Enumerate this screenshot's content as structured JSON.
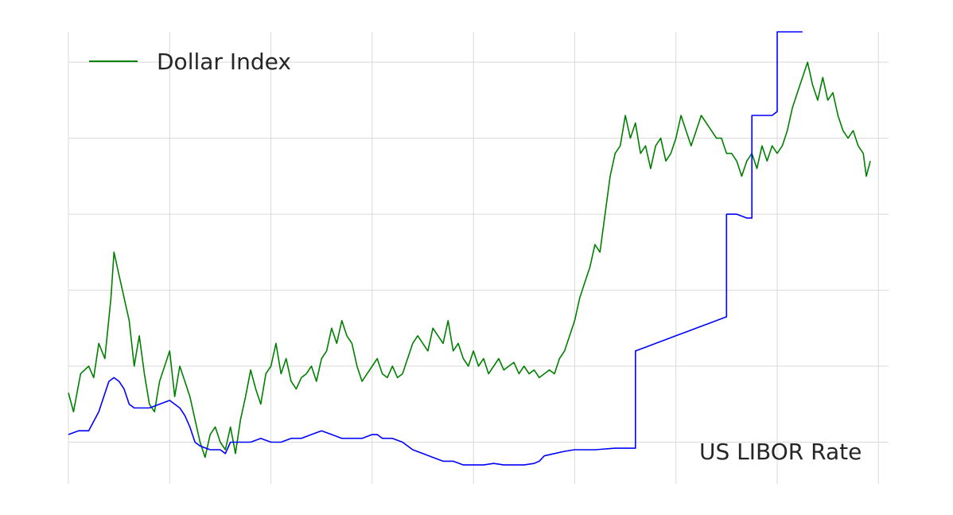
{
  "chart_data": {
    "type": "line",
    "title": "",
    "xlabel": "",
    "ylabel": "",
    "grid": true,
    "legend": {
      "placement": "top-left",
      "entries": [
        "Dollar Index"
      ]
    },
    "annotations": [
      "US LIBOR Rate"
    ],
    "x_range": [
      0,
      8.1
    ],
    "y_range": [
      -0.55,
      5.4
    ],
    "series": [
      {
        "name": "Dollar Index",
        "color": "#008000",
        "points": [
          [
            0,
            0.65
          ],
          [
            0.05,
            0.4
          ],
          [
            0.12,
            0.9
          ],
          [
            0.2,
            1.0
          ],
          [
            0.25,
            0.85
          ],
          [
            0.3,
            1.3
          ],
          [
            0.36,
            1.1
          ],
          [
            0.42,
            1.9
          ],
          [
            0.45,
            2.5
          ],
          [
            0.5,
            2.2
          ],
          [
            0.55,
            1.9
          ],
          [
            0.6,
            1.6
          ],
          [
            0.65,
            1.0
          ],
          [
            0.7,
            1.4
          ],
          [
            0.75,
            0.9
          ],
          [
            0.8,
            0.5
          ],
          [
            0.85,
            0.4
          ],
          [
            0.9,
            0.8
          ],
          [
            1.0,
            1.2
          ],
          [
            1.05,
            0.6
          ],
          [
            1.1,
            1.0
          ],
          [
            1.15,
            0.8
          ],
          [
            1.2,
            0.6
          ],
          [
            1.25,
            0.3
          ],
          [
            1.3,
            0.0
          ],
          [
            1.35,
            -0.2
          ],
          [
            1.4,
            0.1
          ],
          [
            1.45,
            0.2
          ],
          [
            1.5,
            0.0
          ],
          [
            1.55,
            -0.1
          ],
          [
            1.6,
            0.2
          ],
          [
            1.65,
            -0.15
          ],
          [
            1.7,
            0.3
          ],
          [
            1.75,
            0.6
          ],
          [
            1.8,
            0.95
          ],
          [
            1.85,
            0.7
          ],
          [
            1.9,
            0.5
          ],
          [
            1.95,
            0.9
          ],
          [
            2.0,
            1.0
          ],
          [
            2.05,
            1.3
          ],
          [
            2.1,
            0.9
          ],
          [
            2.15,
            1.1
          ],
          [
            2.2,
            0.8
          ],
          [
            2.25,
            0.7
          ],
          [
            2.3,
            0.85
          ],
          [
            2.35,
            0.9
          ],
          [
            2.4,
            1.0
          ],
          [
            2.45,
            0.8
          ],
          [
            2.5,
            1.1
          ],
          [
            2.55,
            1.2
          ],
          [
            2.6,
            1.5
          ],
          [
            2.65,
            1.3
          ],
          [
            2.7,
            1.6
          ],
          [
            2.75,
            1.4
          ],
          [
            2.8,
            1.3
          ],
          [
            2.85,
            1.0
          ],
          [
            2.9,
            0.8
          ],
          [
            2.95,
            0.9
          ],
          [
            3.0,
            1.0
          ],
          [
            3.05,
            1.1
          ],
          [
            3.1,
            0.9
          ],
          [
            3.15,
            0.85
          ],
          [
            3.2,
            1.0
          ],
          [
            3.25,
            0.85
          ],
          [
            3.3,
            0.9
          ],
          [
            3.35,
            1.1
          ],
          [
            3.4,
            1.3
          ],
          [
            3.45,
            1.4
          ],
          [
            3.5,
            1.3
          ],
          [
            3.55,
            1.2
          ],
          [
            3.6,
            1.5
          ],
          [
            3.65,
            1.4
          ],
          [
            3.7,
            1.3
          ],
          [
            3.75,
            1.6
          ],
          [
            3.8,
            1.2
          ],
          [
            3.85,
            1.3
          ],
          [
            3.9,
            1.1
          ],
          [
            3.95,
            1.0
          ],
          [
            4.0,
            1.2
          ],
          [
            4.05,
            1.0
          ],
          [
            4.1,
            1.1
          ],
          [
            4.15,
            0.9
          ],
          [
            4.2,
            1.0
          ],
          [
            4.25,
            1.1
          ],
          [
            4.3,
            0.95
          ],
          [
            4.35,
            1.0
          ],
          [
            4.4,
            1.05
          ],
          [
            4.45,
            0.9
          ],
          [
            4.5,
            1.0
          ],
          [
            4.55,
            0.9
          ],
          [
            4.6,
            0.95
          ],
          [
            4.65,
            0.85
          ],
          [
            4.7,
            0.9
          ],
          [
            4.75,
            0.95
          ],
          [
            4.8,
            0.9
          ],
          [
            4.85,
            1.1
          ],
          [
            4.9,
            1.2
          ],
          [
            4.95,
            1.4
          ],
          [
            5.0,
            1.6
          ],
          [
            5.05,
            1.9
          ],
          [
            5.1,
            2.1
          ],
          [
            5.15,
            2.3
          ],
          [
            5.2,
            2.6
          ],
          [
            5.25,
            2.5
          ],
          [
            5.3,
            3.0
          ],
          [
            5.35,
            3.5
          ],
          [
            5.4,
            3.8
          ],
          [
            5.45,
            3.9
          ],
          [
            5.5,
            4.3
          ],
          [
            5.55,
            4.0
          ],
          [
            5.6,
            4.2
          ],
          [
            5.65,
            3.8
          ],
          [
            5.7,
            3.9
          ],
          [
            5.75,
            3.6
          ],
          [
            5.8,
            3.9
          ],
          [
            5.85,
            4.0
          ],
          [
            5.9,
            3.7
          ],
          [
            5.95,
            3.8
          ],
          [
            6.0,
            4.0
          ],
          [
            6.05,
            4.3
          ],
          [
            6.1,
            4.1
          ],
          [
            6.15,
            3.9
          ],
          [
            6.2,
            4.1
          ],
          [
            6.25,
            4.3
          ],
          [
            6.3,
            4.2
          ],
          [
            6.35,
            4.1
          ],
          [
            6.4,
            4.0
          ],
          [
            6.45,
            4.0
          ],
          [
            6.5,
            3.8
          ],
          [
            6.55,
            3.8
          ],
          [
            6.6,
            3.7
          ],
          [
            6.65,
            3.5
          ],
          [
            6.7,
            3.7
          ],
          [
            6.75,
            3.8
          ],
          [
            6.8,
            3.6
          ],
          [
            6.85,
            3.9
          ],
          [
            6.9,
            3.7
          ],
          [
            6.95,
            3.9
          ],
          [
            7.0,
            3.8
          ],
          [
            7.05,
            3.9
          ],
          [
            7.1,
            4.1
          ],
          [
            7.15,
            4.4
          ],
          [
            7.2,
            4.6
          ],
          [
            7.25,
            4.8
          ],
          [
            7.3,
            5.0
          ],
          [
            7.35,
            4.7
          ],
          [
            7.4,
            4.5
          ],
          [
            7.45,
            4.8
          ],
          [
            7.5,
            4.5
          ],
          [
            7.55,
            4.6
          ],
          [
            7.6,
            4.3
          ],
          [
            7.65,
            4.1
          ],
          [
            7.7,
            4.0
          ],
          [
            7.75,
            4.1
          ],
          [
            7.8,
            3.9
          ],
          [
            7.85,
            3.8
          ],
          [
            7.88,
            3.5
          ],
          [
            7.92,
            3.7
          ]
        ]
      },
      {
        "name": "US LIBOR Rate",
        "color": "#0000ff",
        "points": [
          [
            0,
            0.1
          ],
          [
            0.1,
            0.15
          ],
          [
            0.2,
            0.15
          ],
          [
            0.3,
            0.4
          ],
          [
            0.35,
            0.6
          ],
          [
            0.4,
            0.8
          ],
          [
            0.45,
            0.85
          ],
          [
            0.5,
            0.8
          ],
          [
            0.55,
            0.7
          ],
          [
            0.6,
            0.5
          ],
          [
            0.65,
            0.45
          ],
          [
            0.7,
            0.45
          ],
          [
            0.8,
            0.45
          ],
          [
            0.9,
            0.5
          ],
          [
            1.0,
            0.55
          ],
          [
            1.05,
            0.5
          ],
          [
            1.1,
            0.45
          ],
          [
            1.15,
            0.35
          ],
          [
            1.2,
            0.2
          ],
          [
            1.25,
            0.0
          ],
          [
            1.3,
            -0.05
          ],
          [
            1.4,
            -0.1
          ],
          [
            1.5,
            -0.1
          ],
          [
            1.55,
            -0.15
          ],
          [
            1.6,
            0.0
          ],
          [
            1.7,
            0.0
          ],
          [
            1.8,
            0.0
          ],
          [
            1.9,
            0.05
          ],
          [
            2.0,
            0.0
          ],
          [
            2.1,
            0.0
          ],
          [
            2.2,
            0.05
          ],
          [
            2.3,
            0.05
          ],
          [
            2.4,
            0.1
          ],
          [
            2.5,
            0.15
          ],
          [
            2.6,
            0.1
          ],
          [
            2.7,
            0.05
          ],
          [
            2.8,
            0.05
          ],
          [
            2.9,
            0.05
          ],
          [
            3.0,
            0.1
          ],
          [
            3.05,
            0.1
          ],
          [
            3.1,
            0.05
          ],
          [
            3.2,
            0.05
          ],
          [
            3.3,
            0.0
          ],
          [
            3.4,
            -0.1
          ],
          [
            3.5,
            -0.15
          ],
          [
            3.6,
            -0.2
          ],
          [
            3.7,
            -0.25
          ],
          [
            3.8,
            -0.25
          ],
          [
            3.9,
            -0.3
          ],
          [
            4.0,
            -0.3
          ],
          [
            4.1,
            -0.3
          ],
          [
            4.2,
            -0.28
          ],
          [
            4.3,
            -0.3
          ],
          [
            4.4,
            -0.3
          ],
          [
            4.5,
            -0.3
          ],
          [
            4.6,
            -0.28
          ],
          [
            4.65,
            -0.25
          ],
          [
            4.7,
            -0.18
          ],
          [
            4.8,
            -0.15
          ],
          [
            4.9,
            -0.12
          ],
          [
            5.0,
            -0.1
          ],
          [
            5.2,
            -0.1
          ],
          [
            5.4,
            -0.08
          ],
          [
            5.5,
            -0.08
          ],
          [
            5.6,
            -0.08
          ],
          [
            5.6,
            1.2
          ],
          [
            5.7,
            1.25
          ],
          [
            5.8,
            1.3
          ],
          [
            5.9,
            1.35
          ],
          [
            6.0,
            1.4
          ],
          [
            6.1,
            1.45
          ],
          [
            6.2,
            1.5
          ],
          [
            6.3,
            1.55
          ],
          [
            6.4,
            1.6
          ],
          [
            6.5,
            1.65
          ],
          [
            6.5,
            3.0
          ],
          [
            6.6,
            3.0
          ],
          [
            6.7,
            2.95
          ],
          [
            6.75,
            2.95
          ],
          [
            6.75,
            4.3
          ],
          [
            6.8,
            4.3
          ],
          [
            6.9,
            4.3
          ],
          [
            6.95,
            4.3
          ],
          [
            7.0,
            4.35
          ],
          [
            7.0,
            5.4
          ],
          [
            7.1,
            5.4
          ],
          [
            7.2,
            5.4
          ],
          [
            7.25,
            5.4
          ]
        ]
      }
    ]
  }
}
